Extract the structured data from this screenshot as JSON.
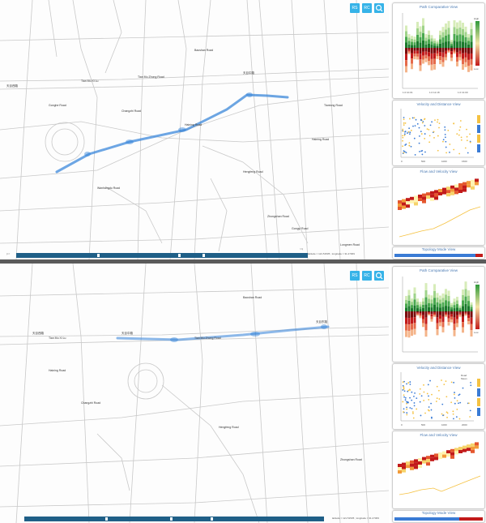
{
  "buttons": {
    "rs": "RS",
    "rc": "RC"
  },
  "views": {
    "path_comparative": "Path Comparative View",
    "velocity_distance": "Velocity and Distance View",
    "flow_velocity": "Flow and Velocity View",
    "topology_mode": "Topology Mode View"
  },
  "scale_text": "latitude = 121.51535 ; longitude = 31.27309",
  "road_labels_top": [
    "天目西路",
    "Tian Mu Xi Lu",
    "Tian Mu Zhong Road",
    "天目中路",
    "Baoshan Road",
    "Gonghe Road",
    "Changzhi Road",
    "Haining Road",
    "Haining Road",
    "Tiantong Road",
    "Hengfeng Road",
    "Wanhangdu Road",
    "Zhongshan Road",
    "Gongyi Road",
    "Longmen Road"
  ],
  "road_labels_bottom": [
    "天目西路",
    "Tian Mu Xi Lu",
    "天目中路",
    "Tian Mu Zhong Road",
    "天目东路",
    "Hengfeng Road",
    "Baoshan Road",
    "Haining Road",
    "Zhongshan Road",
    "Changzhi Road"
  ],
  "axis": {
    "pc_x": [
      "1.0 10.01",
      "1.0 12.18",
      "1.0 13.00"
    ],
    "vd_x": [
      "0",
      "500",
      "1000",
      "1500"
    ],
    "vd_x2": [
      "0",
      "500",
      "1000",
      "2000"
    ],
    "high": "High",
    "low": "Low"
  },
  "legend": {
    "road": "Road",
    "mean": "Mean"
  },
  "timeline": {
    "left": "|<<",
    "right": ">>|"
  },
  "colors": {
    "accent": "#36b3e8",
    "title": "#4a7ab3",
    "green": "#2f9a3a",
    "red": "#c21a1a",
    "yellow": "#f5c242",
    "track": "#3a7bd5"
  }
}
